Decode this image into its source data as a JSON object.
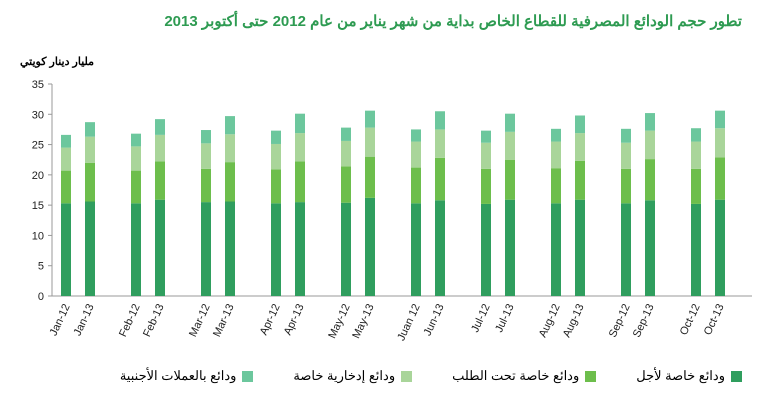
{
  "chart_data": {
    "type": "stacked_bar",
    "title": "تطور حجم الودائع المصرفية للقطاع الخاص بداية من شهر يناير من عام  2012 حتى أكتوبر 2013",
    "y_label": "مليار دينار كويتي",
    "categories": [
      "Jan-12",
      "Jan-13",
      "Feb-12",
      "Feb-13",
      "Mar-12",
      "Mar-13",
      "Apr-12",
      "Apr-13",
      "May-12",
      "May-13",
      "Juan 12",
      "Jun-13",
      "Jul-12",
      "Jul-13",
      "Aug-12",
      "Aug-13",
      "Sep-12",
      "Sep-13",
      "Oct-12",
      "Oct-13"
    ],
    "series": [
      {
        "name": "ودائع خاصة لأجل",
        "color": "#2f9e5e",
        "values": [
          15.3,
          15.6,
          15.3,
          15.9,
          15.5,
          15.6,
          15.3,
          15.5,
          15.4,
          16.2,
          15.3,
          15.8,
          15.2,
          15.9,
          15.3,
          15.9,
          15.3,
          15.8,
          15.2,
          15.9
        ]
      },
      {
        "name": "ودائع  خاصة تحت الطلب",
        "color": "#6dbe4c",
        "values": [
          5.4,
          6.4,
          5.4,
          6.3,
          5.5,
          6.5,
          5.6,
          6.7,
          6.0,
          6.8,
          5.9,
          7.0,
          5.8,
          6.6,
          5.8,
          6.4,
          5.7,
          6.8,
          5.8,
          7.0
        ]
      },
      {
        "name": "ودائع إدخارية خاصة",
        "color": "#a9d59a",
        "values": [
          3.8,
          4.3,
          4.0,
          4.4,
          4.2,
          4.6,
          4.2,
          4.7,
          4.2,
          4.8,
          4.3,
          4.7,
          4.3,
          4.6,
          4.4,
          4.6,
          4.3,
          4.7,
          4.5,
          4.8
        ]
      },
      {
        "name": "ودائع بالعملات الأجنبية",
        "color": "#6cc79d",
        "values": [
          2.1,
          2.4,
          2.1,
          2.6,
          2.2,
          3.0,
          2.2,
          3.2,
          2.2,
          2.8,
          2.0,
          3.0,
          2.0,
          3.0,
          2.1,
          2.9,
          2.3,
          2.9,
          2.2,
          2.9
        ]
      }
    ],
    "ylim": [
      0,
      35
    ],
    "yticks": [
      0,
      5,
      10,
      15,
      20,
      25,
      30,
      35
    ]
  }
}
